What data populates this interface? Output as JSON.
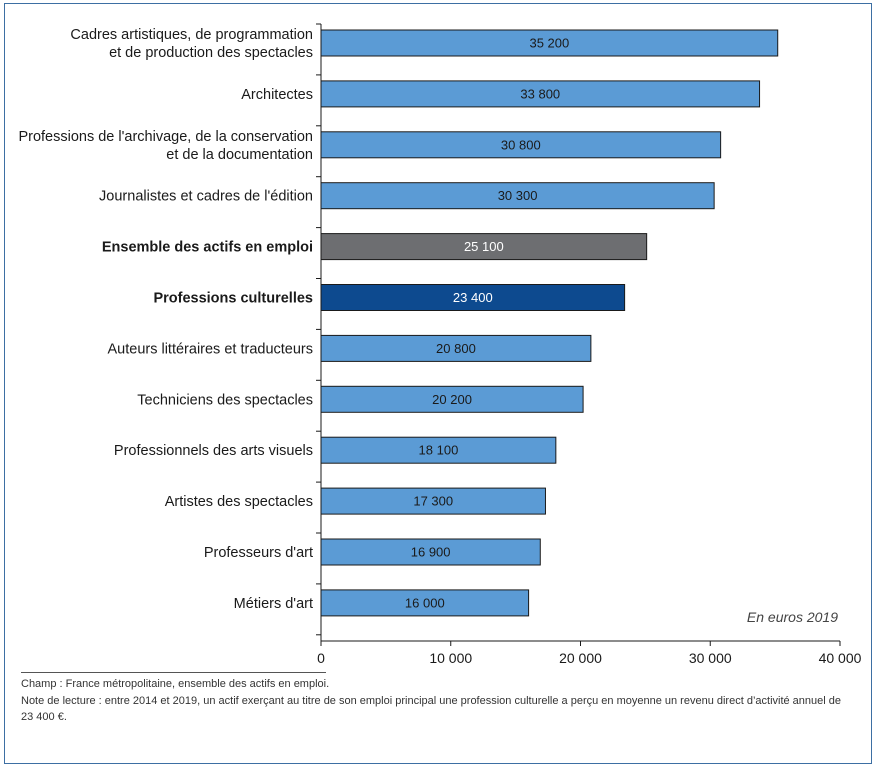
{
  "chart_data": {
    "type": "bar",
    "orientation": "horizontal",
    "categories": [
      [
        "Cadres artistiques, de programmation",
        "et de production des spectacles"
      ],
      [
        "Architectes"
      ],
      [
        "Professions de l'archivage, de la conservation",
        "et de la documentation"
      ],
      [
        "Journalistes et cadres de l'édition"
      ],
      [
        "Ensemble des actifs en emploi"
      ],
      [
        "Professions culturelles"
      ],
      [
        "Auteurs littéraires et traducteurs"
      ],
      [
        "Techniciens des spectacles"
      ],
      [
        "Professionnels des arts visuels"
      ],
      [
        "Artistes des spectacles"
      ],
      [
        "Professeurs d'art"
      ],
      [
        "Métiers d'art"
      ]
    ],
    "values": [
      35200,
      33800,
      30800,
      30300,
      25100,
      23400,
      20800,
      20200,
      18100,
      17300,
      16900,
      16000
    ],
    "value_labels": [
      "35 200",
      "33 800",
      "30 800",
      "30 300",
      "25 100",
      "23 400",
      "20 800",
      "20 200",
      "18 100",
      "17 300",
      "16 900",
      "16 000"
    ],
    "bold_categories": [
      4,
      5
    ],
    "bar_colors": [
      "#5b9bd5",
      "#5b9bd5",
      "#5b9bd5",
      "#5b9bd5",
      "#6d6e71",
      "#0d4a8f",
      "#5b9bd5",
      "#5b9bd5",
      "#5b9bd5",
      "#5b9bd5",
      "#5b9bd5",
      "#5b9bd5"
    ],
    "label_colors": [
      "#1a1a1a",
      "#1a1a1a",
      "#1a1a1a",
      "#1a1a1a",
      "#ffffff",
      "#ffffff",
      "#1a1a1a",
      "#1a1a1a",
      "#1a1a1a",
      "#1a1a1a",
      "#1a1a1a",
      "#1a1a1a"
    ],
    "xlim": [
      0,
      40000
    ],
    "xticks": [
      0,
      10000,
      20000,
      30000,
      40000
    ],
    "xtick_labels": [
      "0",
      "10 000",
      "20 000",
      "30 000",
      "40 000"
    ],
    "unit_note": "En euros 2019",
    "grid": false,
    "legend": "none"
  },
  "footnotes": {
    "champ": "Champ : France métropolitaine, ensemble des actifs en emploi.",
    "note": "Note de lecture : entre 2014 et 2019, un actif exerçant au titre de son emploi principal une profession culturelle a perçu en moyenne un revenu direct d’activité annuel de 23 400 €."
  },
  "colors": {
    "frame": "#3d6fa3",
    "bar_border": "#1a1a1a"
  }
}
